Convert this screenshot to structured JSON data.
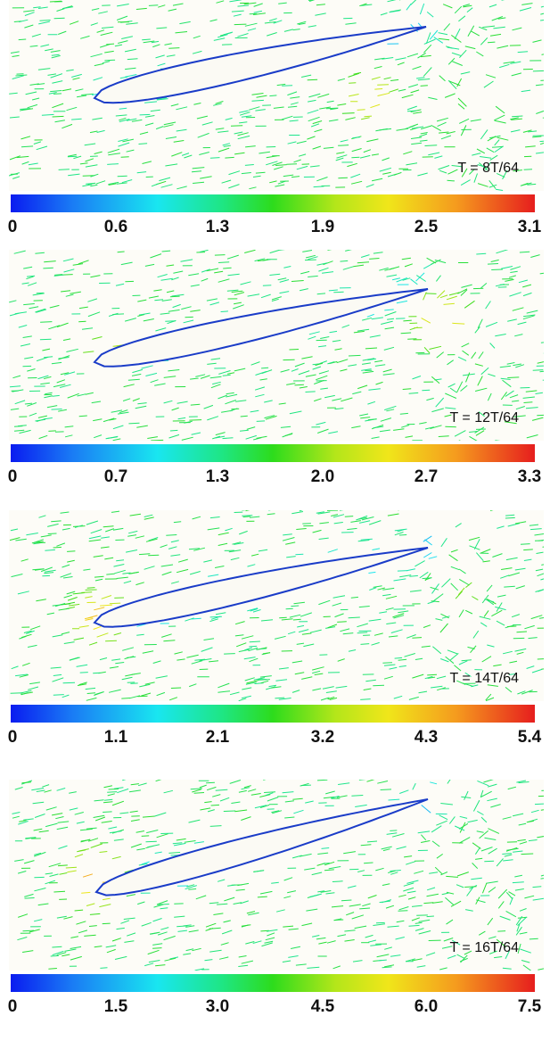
{
  "panels": [
    {
      "time_label": "T = 8T/64",
      "scale": {
        "min": 0,
        "max": 3.1,
        "ticks": [
          "0",
          "0.6",
          "1.3",
          "1.9",
          "2.5",
          "3.1"
        ]
      }
    },
    {
      "time_label": "T = 12T/64",
      "scale": {
        "min": 0,
        "max": 3.3,
        "ticks": [
          "0",
          "0.7",
          "1.3",
          "2.0",
          "2.7",
          "3.3"
        ]
      }
    },
    {
      "time_label": "T = 14T/64",
      "scale": {
        "min": 0,
        "max": 5.4,
        "ticks": [
          "0",
          "1.1",
          "2.1",
          "3.2",
          "4.3",
          "5.4"
        ]
      }
    },
    {
      "time_label": "T = 16T/64",
      "scale": {
        "min": 0,
        "max": 7.5,
        "ticks": [
          "0",
          "1.5",
          "3.0",
          "4.5",
          "6.0",
          "7.5"
        ]
      }
    }
  ],
  "colors": {
    "colormap": [
      "#0a1cf0",
      "#1a7df5",
      "#19e6f0",
      "#1ee687",
      "#2ddc1c",
      "#b4e61a",
      "#f0e61a",
      "#f59b1e",
      "#e61e1e"
    ],
    "airfoil_fill": "#fbfaf4",
    "airfoil_edge": "#1a3cc8",
    "background": "#fdfcf7"
  }
}
